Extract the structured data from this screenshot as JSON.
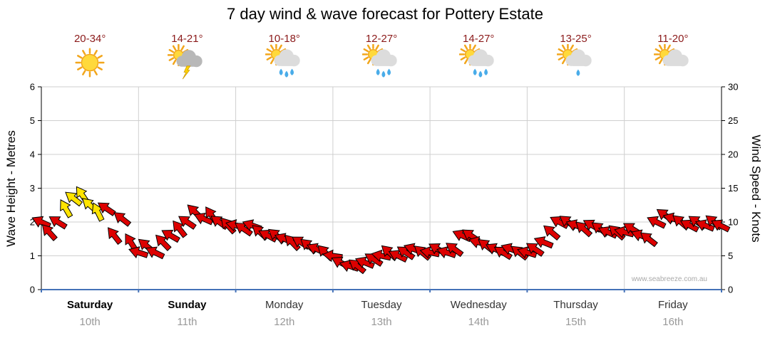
{
  "title": "7 day wind & wave forecast for Pottery Estate",
  "watermark": "www.seabreeze.com.au",
  "colors": {
    "arrow_red": "#DD0000",
    "arrow_yellow": "#FFE400",
    "temp_text": "#8B1A1A",
    "grid": "#CFCFCF",
    "bottom_axis": "#4472B8"
  },
  "days": [
    {
      "name": "Saturday",
      "date": "10th",
      "temp": "20-34°",
      "icon": "sunny",
      "bold": true
    },
    {
      "name": "Sunday",
      "date": "11th",
      "temp": "14-21°",
      "icon": "thunderstorm",
      "bold": true
    },
    {
      "name": "Monday",
      "date": "12th",
      "temp": "10-18°",
      "icon": "showers",
      "bold": false
    },
    {
      "name": "Tuesday",
      "date": "13th",
      "temp": "12-27°",
      "icon": "showers",
      "bold": false
    },
    {
      "name": "Wednesday",
      "date": "14th",
      "temp": "14-27°",
      "icon": "showers",
      "bold": false
    },
    {
      "name": "Thursday",
      "date": "15th",
      "temp": "13-25°",
      "icon": "cloud-drop",
      "bold": false
    },
    {
      "name": "Friday",
      "date": "16th",
      "temp": "11-20°",
      "icon": "partly-cloudy",
      "bold": false
    }
  ],
  "chart_data": {
    "type": "scatter",
    "subtype": "wind-direction-arrows",
    "title": "7 day wind & wave forecast for Pottery Estate",
    "left_axis": {
      "label": "Wave Height - Metres",
      "min": 0,
      "max": 6,
      "ticks": [
        0,
        1,
        2,
        3,
        4,
        5,
        6
      ]
    },
    "right_axis": {
      "label": "Wind Speed - Knots",
      "min": 0,
      "max": 30,
      "ticks": [
        0,
        5,
        10,
        15,
        20,
        25,
        30
      ]
    },
    "x_axis": {
      "categories": [
        "Saturday 10th",
        "Sunday 11th",
        "Monday 12th",
        "Tuesday 13th",
        "Wednesday 14th",
        "Thursday 15th",
        "Friday 16th"
      ]
    },
    "grid": true,
    "point_format": [
      "day_offset",
      "wind_knots",
      "direction_deg",
      "color_index"
    ],
    "point_colors": [
      "#DD0000",
      "#FFE400"
    ],
    "points": [
      [
        0.0,
        10,
        205,
        0
      ],
      [
        0.08,
        8.5,
        228,
        0
      ],
      [
        0.17,
        10,
        212,
        0
      ],
      [
        0.25,
        12,
        240,
        1
      ],
      [
        0.33,
        13.5,
        218,
        1
      ],
      [
        0.42,
        14,
        236,
        1
      ],
      [
        0.5,
        12.5,
        222,
        1
      ],
      [
        0.58,
        11.5,
        244,
        1
      ],
      [
        0.67,
        12,
        214,
        0
      ],
      [
        0.75,
        8,
        232,
        0
      ],
      [
        0.83,
        10.5,
        218,
        0
      ],
      [
        0.92,
        7,
        238,
        0
      ],
      [
        1.0,
        5.5,
        198,
        0
      ],
      [
        1.08,
        6.5,
        220,
        0
      ],
      [
        1.17,
        5.5,
        206,
        0
      ],
      [
        1.25,
        7,
        226,
        0
      ],
      [
        1.33,
        8,
        210,
        0
      ],
      [
        1.42,
        9,
        232,
        0
      ],
      [
        1.5,
        10,
        214,
        0
      ],
      [
        1.58,
        11.5,
        224,
        0
      ],
      [
        1.67,
        10.5,
        204,
        0
      ],
      [
        1.75,
        11,
        236,
        0
      ],
      [
        1.83,
        10,
        216,
        0
      ],
      [
        1.92,
        9.5,
        228,
        0
      ],
      [
        2.0,
        9.5,
        194,
        0
      ],
      [
        2.08,
        9,
        214,
        0
      ],
      [
        2.17,
        9.5,
        200,
        0
      ],
      [
        2.25,
        8.5,
        222,
        0
      ],
      [
        2.33,
        8,
        208,
        0
      ],
      [
        2.42,
        8,
        218,
        0
      ],
      [
        2.5,
        7.5,
        202,
        0
      ],
      [
        2.58,
        7,
        226,
        0
      ],
      [
        2.67,
        7,
        212,
        0
      ],
      [
        2.75,
        6.5,
        220,
        0
      ],
      [
        2.83,
        6,
        204,
        0
      ],
      [
        2.92,
        5.5,
        224,
        0
      ],
      [
        3.0,
        5,
        188,
        0
      ],
      [
        3.08,
        4,
        208,
        0
      ],
      [
        3.17,
        3.5,
        198,
        0
      ],
      [
        3.25,
        3.5,
        218,
        0
      ],
      [
        3.33,
        4,
        202,
        0
      ],
      [
        3.42,
        4.5,
        212,
        0
      ],
      [
        3.5,
        5,
        192,
        0
      ],
      [
        3.58,
        5.5,
        222,
        0
      ],
      [
        3.67,
        5,
        206,
        0
      ],
      [
        3.75,
        5.5,
        214,
        0
      ],
      [
        3.83,
        6,
        200,
        0
      ],
      [
        3.92,
        5.5,
        220,
        0
      ],
      [
        4.0,
        5.5,
        192,
        0
      ],
      [
        4.08,
        6,
        210,
        0
      ],
      [
        4.17,
        5.5,
        198,
        0
      ],
      [
        4.25,
        6,
        216,
        0
      ],
      [
        4.33,
        8,
        204,
        0
      ],
      [
        4.42,
        8,
        214,
        0
      ],
      [
        4.5,
        7,
        196,
        0
      ],
      [
        4.58,
        6.5,
        218,
        0
      ],
      [
        4.67,
        6,
        206,
        0
      ],
      [
        4.75,
        5.5,
        212,
        0
      ],
      [
        4.83,
        6,
        200,
        0
      ],
      [
        4.92,
        5.5,
        218,
        0
      ],
      [
        5.0,
        5.5,
        197,
        0
      ],
      [
        5.08,
        6,
        214,
        0
      ],
      [
        5.17,
        7,
        202,
        0
      ],
      [
        5.25,
        8.5,
        220,
        0
      ],
      [
        5.33,
        10,
        208,
        0
      ],
      [
        5.42,
        10,
        216,
        0
      ],
      [
        5.5,
        9.5,
        200,
        0
      ],
      [
        5.58,
        9,
        222,
        0
      ],
      [
        5.67,
        9.5,
        210,
        0
      ],
      [
        5.75,
        9,
        217,
        0
      ],
      [
        5.83,
        8.5,
        204,
        0
      ],
      [
        5.92,
        8.5,
        221,
        0
      ],
      [
        6.0,
        8.5,
        194,
        0
      ],
      [
        6.08,
        9,
        212,
        0
      ],
      [
        6.17,
        8,
        200,
        0
      ],
      [
        6.25,
        7.5,
        218,
        0
      ],
      [
        6.33,
        10,
        206,
        0
      ],
      [
        6.42,
        11,
        215,
        0
      ],
      [
        6.5,
        10.5,
        198,
        0
      ],
      [
        6.58,
        10,
        220,
        0
      ],
      [
        6.67,
        9.5,
        208,
        0
      ],
      [
        6.75,
        10,
        214,
        0
      ],
      [
        6.83,
        9.5,
        202,
        0
      ],
      [
        6.92,
        10,
        219,
        0
      ],
      [
        6.99,
        9.5,
        207,
        0
      ]
    ]
  }
}
